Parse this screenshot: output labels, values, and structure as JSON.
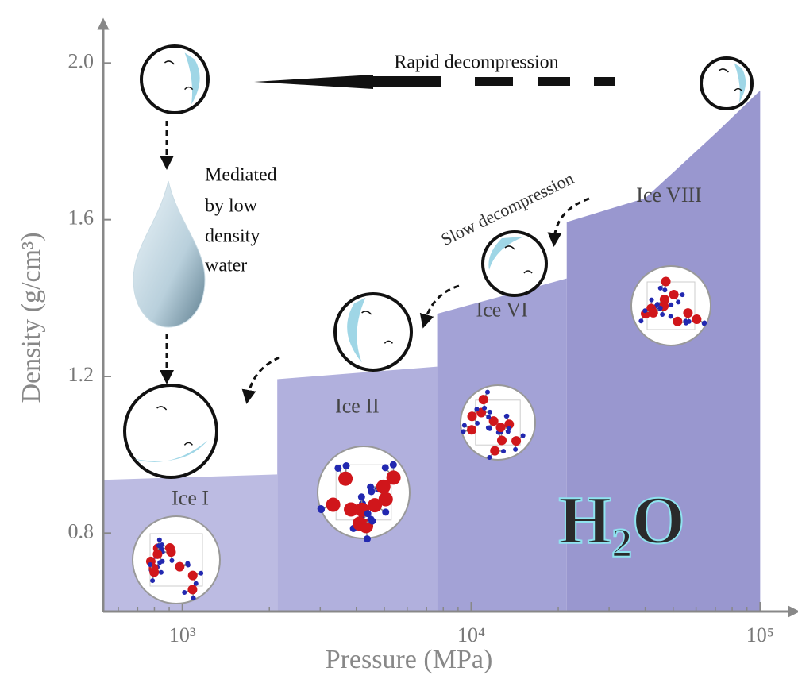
{
  "chart_data": {
    "type": "area",
    "x_label": "Pressure (MPa)",
    "y_label": "Density (g/cm³)",
    "xscale": "log",
    "xlim": [
      532,
      131000
    ],
    "ylim": [
      0.6,
      2.1
    ],
    "xticks": [
      {
        "value": 1000,
        "label": "10³"
      },
      {
        "value": 10000,
        "label": "10⁴"
      },
      {
        "value": 100000,
        "label": "10⁵"
      }
    ],
    "xminorticks": [
      600,
      700,
      800,
      900,
      2000,
      3000,
      4000,
      5000,
      6000,
      7000,
      8000,
      9000,
      20000,
      30000,
      40000,
      50000,
      60000,
      70000,
      80000,
      90000
    ],
    "yticks": [
      {
        "value": 2.0,
        "label": "2.0"
      },
      1.6,
      1.2,
      0.8
    ],
    "series": [
      {
        "name": "Ice I",
        "color": "#bcbbe2",
        "x": [
          532,
          2130
        ],
        "values": [
          0.936,
          0.95
        ]
      },
      {
        "name": "Ice II",
        "color": "#b1b0dd",
        "x": [
          2130,
          7620
        ],
        "values": [
          1.193,
          1.225
        ]
      },
      {
        "name": "Ice VI",
        "color": "#a3a2d6",
        "x": [
          7620,
          21400
        ],
        "values": [
          1.36,
          1.45
        ]
      },
      {
        "name": "Ice VIII",
        "color": "#9997cf",
        "x": [
          21400,
          40000,
          70000,
          100000
        ],
        "values": [
          1.594,
          1.655,
          1.82,
          1.93
        ]
      }
    ],
    "annotations": {
      "rapid": "Rapid decompression",
      "slow": "Slow decompression",
      "mediated": [
        "Mediated",
        "by low",
        "density",
        "water"
      ],
      "formula": "H₂O"
    }
  }
}
